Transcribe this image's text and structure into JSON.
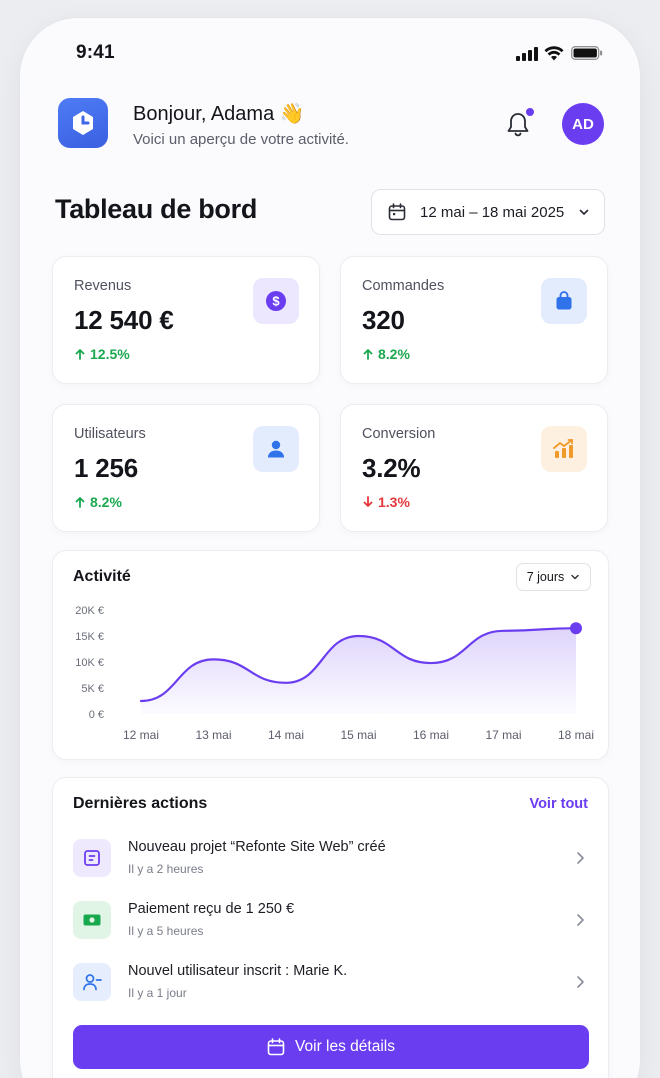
{
  "status_bar": {
    "time": "9:41"
  },
  "header": {
    "greeting": "Bonjour, Adama 👋",
    "subtitle": "Voici un aperçu de votre activité.",
    "avatar_initials": "AD"
  },
  "dashboard": {
    "title": "Tableau de bord",
    "date_range": "12 mai – 18 mai 2025"
  },
  "stats": [
    {
      "label": "Revenus",
      "value": "12 540 €",
      "delta": "12.5%",
      "trend": "up",
      "icon": "dollar-icon",
      "icon_bg": "#ece7fe",
      "icon_color": "#6b3df0"
    },
    {
      "label": "Commandes",
      "value": "320",
      "delta": "8.2%",
      "trend": "up",
      "icon": "shopping-bag-icon",
      "icon_bg": "#e3ecfd",
      "icon_color": "#2f72ea"
    },
    {
      "label": "Utilisateurs",
      "value": "1 256",
      "delta": "8.2%",
      "trend": "up",
      "icon": "user-icon",
      "icon_bg": "#e3ecfd",
      "icon_color": "#2f72ea"
    },
    {
      "label": "Conversion",
      "value": "3.2%",
      "delta": "1.3%",
      "trend": "down",
      "icon": "chart-icon",
      "icon_bg": "#fdf0e0",
      "icon_color": "#f09a2a"
    }
  ],
  "activity": {
    "title": "Activité",
    "range_select": "7 jours"
  },
  "chart_data": {
    "type": "area",
    "title": "",
    "categories": [
      "12 mai",
      "13 mai",
      "14 mai",
      "15 mai",
      "16 mai",
      "17 mai",
      "18 mai"
    ],
    "values": [
      2500,
      10500,
      6000,
      15000,
      9800,
      16000,
      16500
    ],
    "y_ticks": [
      "0 €",
      "5K €",
      "10K €",
      "15K €",
      "20K €"
    ],
    "ylim": [
      0,
      20000
    ],
    "color": "#6b3df0"
  },
  "recent_actions": {
    "title": "Dernières actions",
    "see_all": "Voir tout",
    "items": [
      {
        "title": "Nouveau projet “Refonte Site Web” créé",
        "time": "Il y a 2 heures",
        "icon": "project-icon",
        "icon_bg": "#efe9fe",
        "icon_color": "#6b3df0"
      },
      {
        "title": "Paiement reçu de 1 250 €",
        "time": "Il y a 5 heures",
        "icon": "payment-icon",
        "icon_bg": "#e1f5e7",
        "icon_color": "#1aa84f"
      },
      {
        "title": "Nouvel utilisateur inscrit : Marie K.",
        "time": "Il y a 1 jour",
        "icon": "user-plus-icon",
        "icon_bg": "#e6eefd",
        "icon_color": "#2f72ea"
      }
    ],
    "cta": "Voir les détails"
  },
  "colors": {
    "accent": "#6b3df0",
    "positive": "#1aa84f",
    "negative": "#e5383b"
  }
}
